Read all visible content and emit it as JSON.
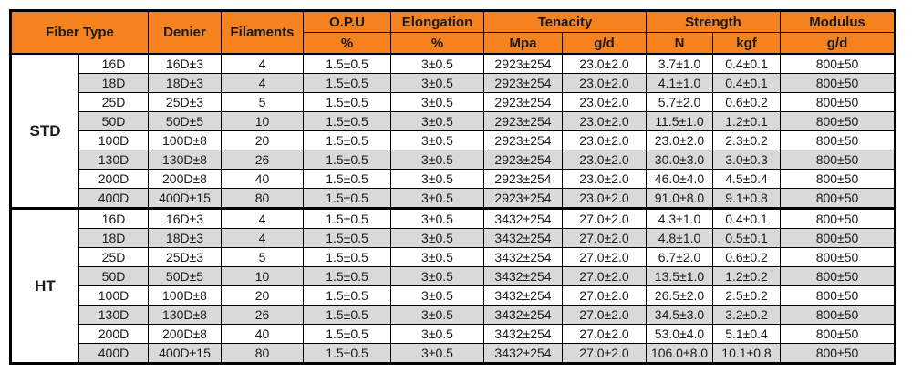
{
  "table": {
    "header": {
      "fiber_type": "Fiber Type",
      "denier": "Denier",
      "filaments": "Filaments",
      "opu": {
        "label": "O.P.U",
        "unit": "%"
      },
      "elongation": {
        "label": "Elongation",
        "unit": "%"
      },
      "tenacity": {
        "label": "Tenacity",
        "units": [
          "Mpa",
          "g/d"
        ]
      },
      "strength": {
        "label": "Strength",
        "units": [
          "N",
          "kgf"
        ]
      },
      "modulus": {
        "label": "Modulus",
        "unit": "g/d"
      }
    },
    "groups": [
      {
        "name": "STD",
        "rows": [
          [
            "16D",
            "16D±3",
            "4",
            "1.5±0.5",
            "3±0.5",
            "2923±254",
            "23.0±2.0",
            "3.7±1.0",
            "0.4±0.1",
            "800±50"
          ],
          [
            "18D",
            "18D±3",
            "4",
            "1.5±0.5",
            "3±0.5",
            "2923±254",
            "23.0±2.0",
            "4.1±1.0",
            "0.4±0.1",
            "800±50"
          ],
          [
            "25D",
            "25D±3",
            "5",
            "1.5±0.5",
            "3±0.5",
            "2923±254",
            "23.0±2.0",
            "5.7±2.0",
            "0.6±0.2",
            "800±50"
          ],
          [
            "50D",
            "50D±5",
            "10",
            "1.5±0.5",
            "3±0.5",
            "2923±254",
            "23.0±2.0",
            "11.5±1.0",
            "1.2±0.1",
            "800±50"
          ],
          [
            "100D",
            "100D±8",
            "20",
            "1.5±0.5",
            "3±0.5",
            "2923±254",
            "23.0±2.0",
            "23.0±2.0",
            "2.3±0.2",
            "800±50"
          ],
          [
            "130D",
            "130D±8",
            "26",
            "1.5±0.5",
            "3±0.5",
            "2923±254",
            "23.0±2.0",
            "30.0±3.0",
            "3.0±0.3",
            "800±50"
          ],
          [
            "200D",
            "200D±8",
            "40",
            "1.5±0.5",
            "3±0.5",
            "2923±254",
            "23.0±2.0",
            "46.0±4.0",
            "4.5±0.4",
            "800±50"
          ],
          [
            "400D",
            "400D±15",
            "80",
            "1.5±0.5",
            "3±0.5",
            "2923±254",
            "23.0±2.0",
            "91.0±8.0",
            "9.1±0.8",
            "800±50"
          ]
        ]
      },
      {
        "name": "HT",
        "rows": [
          [
            "16D",
            "16D±3",
            "4",
            "1.5±0.5",
            "3±0.5",
            "3432±254",
            "27.0±2.0",
            "4.3±1.0",
            "0.4±0.1",
            "800±50"
          ],
          [
            "18D",
            "18D±3",
            "4",
            "1.5±0.5",
            "3±0.5",
            "3432±254",
            "27.0±2.0",
            "4.8±1.0",
            "0.5±0.1",
            "800±50"
          ],
          [
            "25D",
            "25D±3",
            "5",
            "1.5±0.5",
            "3±0.5",
            "3432±254",
            "27.0±2.0",
            "6.7±2.0",
            "0.6±0.2",
            "800±50"
          ],
          [
            "50D",
            "50D±5",
            "10",
            "1.5±0.5",
            "3±0.5",
            "3432±254",
            "27.0±2.0",
            "13.5±1.0",
            "1.2±0.2",
            "800±50"
          ],
          [
            "100D",
            "100D±8",
            "20",
            "1.5±0.5",
            "3±0.5",
            "3432±254",
            "27.0±2.0",
            "26.5±2.0",
            "2.5±0.2",
            "800±50"
          ],
          [
            "130D",
            "130D±8",
            "26",
            "1.5±0.5",
            "3±0.5",
            "3432±254",
            "27.0±2.0",
            "34.5±3.0",
            "3.2±0.2",
            "800±50"
          ],
          [
            "200D",
            "200D±8",
            "40",
            "1.5±0.5",
            "3±0.5",
            "3432±254",
            "27.0±2.0",
            "53.0±4.0",
            "5.1±0.4",
            "800±50"
          ],
          [
            "400D",
            "400D±15",
            "80",
            "1.5±0.5",
            "3±0.5",
            "3432±254",
            "27.0±2.0",
            "106.0±8.0",
            "10.1±0.8",
            "800±50"
          ]
        ]
      }
    ]
  },
  "colors": {
    "header_bg": "#F5821F",
    "row_alt_bg": "#D9D9D9",
    "border": "#000000",
    "text": "#1a1a1a"
  },
  "chart_data": {
    "type": "table",
    "title": "Fiber specification table",
    "columns": [
      "Fiber Type group",
      "Fiber Type size",
      "Denier",
      "Filaments",
      "O.P.U %",
      "Elongation %",
      "Tenacity Mpa",
      "Tenacity g/d",
      "Strength N",
      "Strength kgf",
      "Modulus g/d"
    ],
    "rows": [
      [
        "STD",
        "16D",
        "16D±3",
        "4",
        "1.5±0.5",
        "3±0.5",
        "2923±254",
        "23.0±2.0",
        "3.7±1.0",
        "0.4±0.1",
        "800±50"
      ],
      [
        "STD",
        "18D",
        "18D±3",
        "4",
        "1.5±0.5",
        "3±0.5",
        "2923±254",
        "23.0±2.0",
        "4.1±1.0",
        "0.4±0.1",
        "800±50"
      ],
      [
        "STD",
        "25D",
        "25D±3",
        "5",
        "1.5±0.5",
        "3±0.5",
        "2923±254",
        "23.0±2.0",
        "5.7±2.0",
        "0.6±0.2",
        "800±50"
      ],
      [
        "STD",
        "50D",
        "50D±5",
        "10",
        "1.5±0.5",
        "3±0.5",
        "2923±254",
        "23.0±2.0",
        "11.5±1.0",
        "1.2±0.1",
        "800±50"
      ],
      [
        "STD",
        "100D",
        "100D±8",
        "20",
        "1.5±0.5",
        "3±0.5",
        "2923±254",
        "23.0±2.0",
        "23.0±2.0",
        "2.3±0.2",
        "800±50"
      ],
      [
        "STD",
        "130D",
        "130D±8",
        "26",
        "1.5±0.5",
        "3±0.5",
        "2923±254",
        "23.0±2.0",
        "30.0±3.0",
        "3.0±0.3",
        "800±50"
      ],
      [
        "STD",
        "200D",
        "200D±8",
        "40",
        "1.5±0.5",
        "3±0.5",
        "2923±254",
        "23.0±2.0",
        "46.0±4.0",
        "4.5±0.4",
        "800±50"
      ],
      [
        "STD",
        "400D",
        "400D±15",
        "80",
        "1.5±0.5",
        "3±0.5",
        "2923±254",
        "23.0±2.0",
        "91.0±8.0",
        "9.1±0.8",
        "800±50"
      ],
      [
        "HT",
        "16D",
        "16D±3",
        "4",
        "1.5±0.5",
        "3±0.5",
        "3432±254",
        "27.0±2.0",
        "4.3±1.0",
        "0.4±0.1",
        "800±50"
      ],
      [
        "HT",
        "18D",
        "18D±3",
        "4",
        "1.5±0.5",
        "3±0.5",
        "3432±254",
        "27.0±2.0",
        "4.8±1.0",
        "0.5±0.1",
        "800±50"
      ],
      [
        "HT",
        "25D",
        "25D±3",
        "5",
        "1.5±0.5",
        "3±0.5",
        "3432±254",
        "27.0±2.0",
        "6.7±2.0",
        "0.6±0.2",
        "800±50"
      ],
      [
        "HT",
        "50D",
        "50D±5",
        "10",
        "1.5±0.5",
        "3±0.5",
        "3432±254",
        "27.0±2.0",
        "13.5±1.0",
        "1.2±0.2",
        "800±50"
      ],
      [
        "HT",
        "100D",
        "100D±8",
        "20",
        "1.5±0.5",
        "3±0.5",
        "3432±254",
        "27.0±2.0",
        "26.5±2.0",
        "2.5±0.2",
        "800±50"
      ],
      [
        "HT",
        "130D",
        "130D±8",
        "26",
        "1.5±0.5",
        "3±0.5",
        "3432±254",
        "27.0±2.0",
        "34.5±3.0",
        "3.2±0.2",
        "800±50"
      ],
      [
        "HT",
        "200D",
        "200D±8",
        "40",
        "1.5±0.5",
        "3±0.5",
        "3432±254",
        "27.0±2.0",
        "53.0±4.0",
        "5.1±0.4",
        "800±50"
      ],
      [
        "HT",
        "400D",
        "400D±15",
        "80",
        "1.5±0.5",
        "3±0.5",
        "3432±254",
        "27.0±2.0",
        "106.0±8.0",
        "10.1±0.8",
        "800±50"
      ]
    ]
  }
}
